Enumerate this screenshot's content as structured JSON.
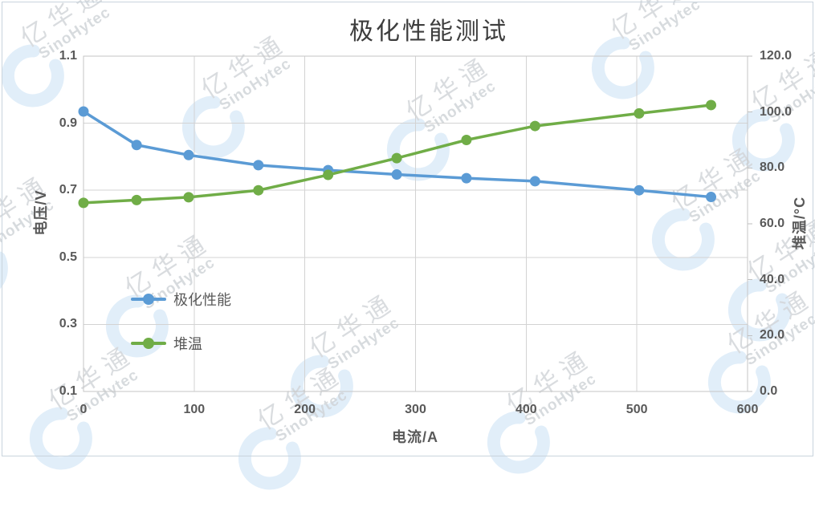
{
  "title": "极化性能测试",
  "watermark": {
    "cn": "亿华通",
    "en": "SinoHytec"
  },
  "colors": {
    "series_blue": "#5B9BD5",
    "series_green": "#70AD47",
    "gridline": "#d3d3d3",
    "plot_frame": "#c6c6c6",
    "tick_mark": "#bfbfbf",
    "axis_text": "#595959",
    "title_text": "#3d3d3d"
  },
  "chart_data": {
    "type": "line",
    "title": "极化性能测试",
    "xlabel": "电流/A",
    "ylabel_left": "电压/V",
    "ylabel_right": "堆温/°C",
    "grid": true,
    "legend_position": "inside-left",
    "xlim": [
      0,
      600
    ],
    "ylim_left": [
      0.1,
      1.1
    ],
    "ylim_right": [
      0.0,
      120.0
    ],
    "x_ticks": [
      0,
      100,
      200,
      300,
      400,
      500,
      600
    ],
    "left_ticks": [
      1.1,
      0.9,
      0.7,
      0.5,
      0.3,
      0.1
    ],
    "right_ticks": [
      120.0,
      100.0,
      80.0,
      60.0,
      40.0,
      20.0,
      0.0
    ],
    "left_tick_labels": [
      "1.1",
      "0.9",
      "0.7",
      "0.5",
      "0.3",
      "0.1"
    ],
    "right_tick_labels": [
      "120.0",
      "100.0",
      "80.0",
      "60.0",
      "40.0",
      "20.0",
      "0.0"
    ],
    "x_tick_labels": [
      "0",
      "100",
      "200",
      "300",
      "400",
      "500",
      "600"
    ],
    "x": [
      0,
      48,
      95,
      158,
      221,
      283,
      346,
      408,
      502,
      567
    ],
    "series": [
      {
        "id": "polarization",
        "name": "极化性能",
        "axis": "left",
        "color": "#5B9BD5",
        "marker": "circle",
        "values": [
          0.935,
          0.835,
          0.805,
          0.775,
          0.76,
          0.747,
          0.736,
          0.727,
          0.7,
          0.68
        ]
      },
      {
        "id": "stack-temperature",
        "name": "堆温",
        "axis": "right",
        "color": "#70AD47",
        "marker": "circle",
        "values": [
          67.5,
          68.5,
          69.5,
          72.0,
          77.5,
          83.5,
          90.0,
          95.0,
          99.5,
          102.5
        ]
      }
    ]
  }
}
